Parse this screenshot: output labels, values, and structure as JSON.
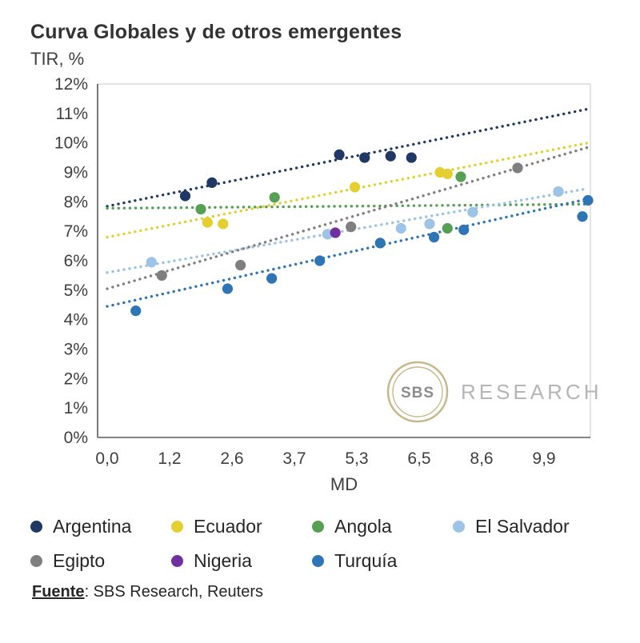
{
  "chart_data": {
    "type": "scatter",
    "title": "Curva Globales y de otros emergentes",
    "ylabel_display": "TIR, %",
    "xlabel": "MD",
    "ylim": [
      0,
      12
    ],
    "grid": false,
    "legend_position": "bottom",
    "y_ticks": [
      "0%",
      "1%",
      "2%",
      "3%",
      "4%",
      "5%",
      "6%",
      "7%",
      "8%",
      "9%",
      "10%",
      "11%",
      "12%"
    ],
    "x_tick_labels": [
      "0,0",
      "1,2",
      "2,6",
      "3,7",
      "5,3",
      "6,5",
      "8,6",
      "9,9"
    ],
    "x_tick_values": [
      0.0,
      1.2,
      2.6,
      3.7,
      5.3,
      6.5,
      8.6,
      9.9
    ],
    "series": [
      {
        "name": "Argentina",
        "color": "#1f3864",
        "points": [
          [
            1.55,
            8.2
          ],
          [
            2.15,
            8.65
          ],
          [
            4.85,
            9.6
          ],
          [
            5.45,
            9.5
          ],
          [
            5.95,
            9.55
          ],
          [
            6.35,
            9.5
          ]
        ],
        "trend": {
          "x": [
            0,
            10.9
          ],
          "y": [
            7.85,
            11.15
          ]
        }
      },
      {
        "name": "Ecuador",
        "color": "#e3cf2f",
        "points": [
          [
            2.05,
            7.3
          ],
          [
            2.4,
            7.25
          ],
          [
            5.25,
            8.5
          ],
          [
            7.2,
            9.0
          ],
          [
            7.45,
            8.95
          ]
        ],
        "trend": {
          "x": [
            0,
            10.9
          ],
          "y": [
            6.8,
            10.0
          ]
        }
      },
      {
        "name": "Angola",
        "color": "#55a054",
        "points": [
          [
            1.9,
            7.75
          ],
          [
            3.35,
            8.15
          ],
          [
            7.45,
            7.1
          ],
          [
            7.9,
            8.85
          ]
        ],
        "trend": {
          "x": [
            0,
            10.9
          ],
          "y": [
            7.78,
            7.92
          ]
        }
      },
      {
        "name": "El Salvador",
        "color": "#9dc3e6",
        "points": [
          [
            0.85,
            5.95
          ],
          [
            4.55,
            6.9
          ],
          [
            6.15,
            7.1
          ],
          [
            6.85,
            7.25
          ],
          [
            8.3,
            7.65
          ],
          [
            10.2,
            8.35
          ]
        ],
        "trend": {
          "x": [
            0,
            10.9
          ],
          "y": [
            5.6,
            8.45
          ]
        }
      },
      {
        "name": "Egipto",
        "color": "#7f7f7f",
        "points": [
          [
            1.05,
            5.5
          ],
          [
            2.75,
            5.85
          ],
          [
            5.15,
            7.15
          ],
          [
            9.35,
            9.15
          ]
        ],
        "trend": {
          "x": [
            0,
            10.9
          ],
          "y": [
            5.05,
            9.85
          ]
        }
      },
      {
        "name": "Nigeria",
        "color": "#7030a0",
        "points": [
          [
            4.75,
            6.95
          ]
        ]
      },
      {
        "name": "Turquía",
        "color": "#2e75b6",
        "points": [
          [
            0.55,
            4.3
          ],
          [
            2.5,
            5.05
          ],
          [
            3.3,
            5.4
          ],
          [
            4.35,
            6.0
          ],
          [
            5.75,
            6.6
          ],
          [
            7.0,
            6.8
          ],
          [
            8.0,
            7.05
          ],
          [
            10.7,
            7.5
          ],
          [
            10.85,
            8.05
          ]
        ],
        "trend": {
          "x": [
            0,
            10.9
          ],
          "y": [
            4.45,
            8.1
          ]
        }
      }
    ]
  },
  "watermark": {
    "badge": "SBS",
    "text": "RESEARCH"
  },
  "footer": {
    "label": "Fuente",
    "rest": ": SBS Research, Reuters"
  }
}
